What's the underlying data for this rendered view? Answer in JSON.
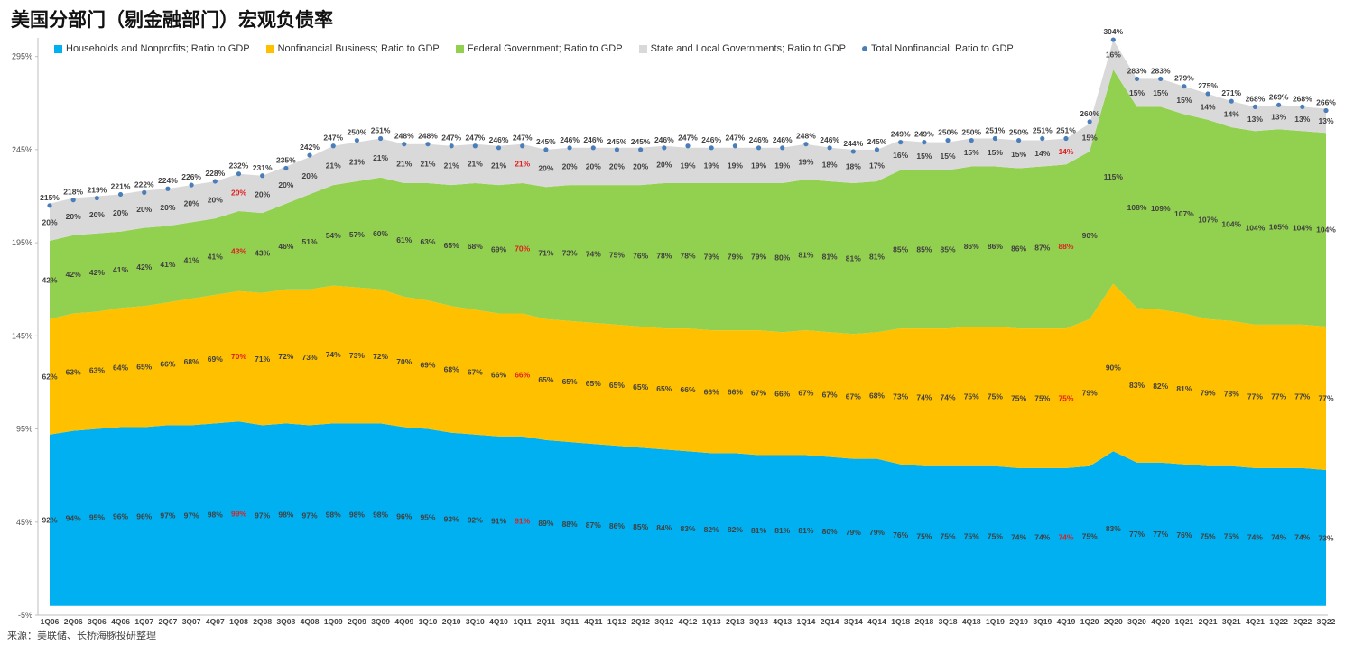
{
  "title": "美国分部门（剔金融部门）宏观负债率",
  "source": "来源：美联储、长桥海豚投研整理",
  "chart_data": {
    "type": "area",
    "stacked": true,
    "ylim": [
      -5,
      305
    ],
    "yticks": [
      "-5%",
      "45%",
      "95%",
      "145%",
      "195%",
      "245%",
      "295%"
    ],
    "ytick_values": [
      -5,
      45,
      95,
      145,
      195,
      245,
      295
    ],
    "categories": [
      "1Q06",
      "2Q06",
      "3Q06",
      "4Q06",
      "1Q07",
      "2Q07",
      "3Q07",
      "4Q07",
      "1Q08",
      "2Q08",
      "3Q08",
      "4Q08",
      "1Q09",
      "2Q09",
      "3Q09",
      "4Q09",
      "1Q10",
      "2Q10",
      "3Q10",
      "4Q10",
      "1Q11",
      "2Q11",
      "3Q11",
      "4Q11",
      "1Q12",
      "2Q12",
      "3Q12",
      "4Q12",
      "1Q13",
      "2Q13",
      "3Q13",
      "4Q13",
      "1Q14",
      "2Q14",
      "3Q14",
      "4Q14",
      "1Q18",
      "2Q18",
      "3Q18",
      "4Q18",
      "1Q19",
      "2Q19",
      "3Q19",
      "4Q19",
      "1Q20",
      "2Q20",
      "3Q20",
      "4Q20",
      "1Q21",
      "2Q21",
      "3Q21",
      "4Q21",
      "1Q22",
      "2Q22",
      "3Q22"
    ],
    "series": [
      {
        "name": "Households and Nonprofits; Ratio to GDP",
        "color": "#00b0f0",
        "values": [
          92,
          94,
          95,
          96,
          96,
          97,
          97,
          98,
          99,
          97,
          98,
          97,
          98,
          98,
          98,
          96,
          95,
          93,
          92,
          91,
          91,
          89,
          88,
          87,
          86,
          85,
          84,
          83,
          82,
          82,
          81,
          81,
          81,
          80,
          79,
          79,
          76,
          75,
          75,
          75,
          75,
          74,
          74,
          74,
          75,
          83,
          77,
          77,
          76,
          75,
          75,
          74,
          74,
          74,
          73
        ],
        "labels": [
          "92%",
          "94%",
          "95%",
          "96%",
          "96%",
          "97%",
          "97%",
          "98%",
          "99%",
          "97%",
          "98%",
          "97%",
          "98%",
          "98%",
          "98%",
          "96%",
          "95%",
          "93%",
          "92%",
          "91%",
          "91%",
          "89%",
          "88%",
          "87%",
          "86%",
          "85%",
          "84%",
          "83%",
          "82%",
          "82%",
          "81%",
          "81%",
          "81%",
          "80%",
          "79%",
          "79%",
          "76%",
          "75%",
          "75%",
          "75%",
          "75%",
          "74%",
          "74%",
          "74%",
          "75%",
          "83%",
          "77%",
          "77%",
          "76%",
          "75%",
          "75%",
          "74%",
          "74%",
          "74%",
          "73%"
        ]
      },
      {
        "name": "Nonfinancial Business; Ratio to GDP",
        "color": "#ffc000",
        "values": [
          62,
          63,
          63,
          64,
          65,
          66,
          68,
          69,
          70,
          71,
          72,
          73,
          74,
          73,
          72,
          70,
          69,
          68,
          67,
          66,
          66,
          65,
          65,
          65,
          65,
          65,
          65,
          66,
          66,
          66,
          67,
          66,
          67,
          67,
          67,
          68,
          73,
          74,
          74,
          75,
          75,
          75,
          75,
          75,
          79,
          90,
          83,
          82,
          81,
          79,
          78,
          77,
          77,
          77,
          77
        ],
        "labels": [
          "62%",
          "63%",
          "63%",
          "64%",
          "65%",
          "66%",
          "68%",
          "69%",
          "70%",
          "71%",
          "72%",
          "73%",
          "74%",
          "73%",
          "72%",
          "70%",
          "69%",
          "68%",
          "67%",
          "66%",
          "66%",
          "65%",
          "65%",
          "65%",
          "65%",
          "65%",
          "65%",
          "66%",
          "66%",
          "66%",
          "67%",
          "66%",
          "67%",
          "67%",
          "67%",
          "68%",
          "73%",
          "74%",
          "74%",
          "75%",
          "75%",
          "75%",
          "75%",
          "75%",
          "79%",
          "90%",
          "83%",
          "82%",
          "81%",
          "79%",
          "78%",
          "77%",
          "77%",
          "77%",
          "77%"
        ]
      },
      {
        "name": "Federal Government; Ratio to GDP",
        "color": "#92d050",
        "values": [
          42,
          42,
          42,
          41,
          42,
          41,
          41,
          41,
          43,
          43,
          46,
          51,
          54,
          57,
          60,
          61,
          63,
          65,
          68,
          69,
          70,
          71,
          73,
          74,
          75,
          76,
          78,
          78,
          79,
          79,
          79,
          80,
          81,
          81,
          81,
          81,
          85,
          85,
          85,
          86,
          86,
          86,
          87,
          88,
          90,
          115,
          108,
          109,
          107,
          107,
          104,
          104,
          105,
          104,
          104
        ],
        "labels": [
          "42%",
          "42%",
          "42%",
          "41%",
          "42%",
          "41%",
          "41%",
          "41%",
          "43%",
          "43%",
          "46%",
          "51%",
          "54%",
          "57%",
          "60%",
          "61%",
          "63%",
          "65%",
          "68%",
          "69%",
          "70%",
          "71%",
          "73%",
          "74%",
          "75%",
          "76%",
          "78%",
          "78%",
          "79%",
          "79%",
          "79%",
          "80%",
          "81%",
          "81%",
          "81%",
          "81%",
          "85%",
          "85%",
          "85%",
          "86%",
          "86%",
          "86%",
          "87%",
          "88%",
          "90%",
          "115%",
          "108%",
          "109%",
          "107%",
          "107%",
          "104%",
          "104%",
          "105%",
          "104%",
          "104%"
        ]
      },
      {
        "name": "State and Local Governments; Ratio to GDP",
        "color": "#d9d9d9",
        "values": [
          20,
          20,
          20,
          20,
          20,
          20,
          20,
          20,
          20,
          20,
          20,
          20,
          21,
          21,
          21,
          21,
          21,
          21,
          21,
          21,
          21,
          20,
          20,
          20,
          20,
          20,
          20,
          19,
          19,
          19,
          19,
          19,
          19,
          18,
          18,
          17,
          16,
          15,
          15,
          15,
          15,
          15,
          14,
          14,
          15,
          16,
          15,
          15,
          15,
          14,
          14,
          13,
          13,
          13,
          13
        ],
        "labels": [
          "20%",
          "20%",
          "20%",
          "20%",
          "20%",
          "20%",
          "20%",
          "20%",
          "20%",
          "20%",
          "20%",
          "20%",
          "21%",
          "21%",
          "21%",
          "21%",
          "21%",
          "21%",
          "21%",
          "21%",
          "21%",
          "20%",
          "20%",
          "20%",
          "20%",
          "20%",
          "20%",
          "19%",
          "19%",
          "19%",
          "19%",
          "19%",
          "19%",
          "18%",
          "18%",
          "17%",
          "16%",
          "15%",
          "15%",
          "15%",
          "15%",
          "15%",
          "14%",
          "14%",
          "15%",
          "16%",
          "15%",
          "15%",
          "15%",
          "14%",
          "14%",
          "13%",
          "13%",
          "13%",
          "13%"
        ]
      }
    ],
    "total": {
      "name": "Total Nonfinancial; Ratio to GDP",
      "color": "#4a7ebb",
      "values": [
        215,
        218,
        219,
        221,
        222,
        224,
        226,
        228,
        232,
        231,
        235,
        242,
        247,
        250,
        251,
        248,
        248,
        247,
        247,
        246,
        247,
        245,
        246,
        246,
        245,
        245,
        246,
        247,
        246,
        247,
        246,
        246,
        248,
        246,
        244,
        245,
        249,
        249,
        250,
        250,
        251,
        250,
        251,
        251,
        260,
        304,
        283,
        283,
        279,
        275,
        271,
        268,
        269,
        268,
        266
      ],
      "labels": [
        "215%",
        "218%",
        "219%",
        "221%",
        "222%",
        "224%",
        "226%",
        "228%",
        "232%",
        "231%",
        "235%",
        "242%",
        "247%",
        "250%",
        "251%",
        "248%",
        "248%",
        "247%",
        "247%",
        "246%",
        "247%",
        "245%",
        "246%",
        "246%",
        "245%",
        "245%",
        "246%",
        "247%",
        "246%",
        "247%",
        "246%",
        "246%",
        "248%",
        "246%",
        "244%",
        "245%",
        "249%",
        "249%",
        "250%",
        "250%",
        "251%",
        "250%",
        "251%",
        "251%",
        "260%",
        "304%",
        "283%",
        "283%",
        "279%",
        "275%",
        "271%",
        "268%",
        "269%",
        "268%",
        "266%"
      ]
    },
    "highlight_indices": [
      8,
      20,
      43
    ],
    "highlight_color": "#e02020"
  }
}
